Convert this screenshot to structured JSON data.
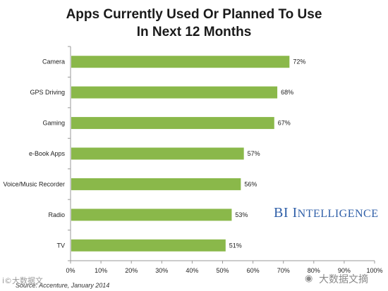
{
  "chart_data": {
    "type": "bar",
    "orientation": "horizontal",
    "title": "Apps Currently Used Or Planned To Use",
    "subtitle": "In Next 12 Months",
    "categories": [
      "Camera",
      "GPS Driving",
      "Gaming",
      "e-Book Apps",
      "Voice/Music Recorder",
      "Radio",
      "TV"
    ],
    "values": [
      72,
      68,
      67,
      57,
      56,
      53,
      51
    ],
    "data_labels": [
      "72%",
      "68%",
      "67%",
      "57%",
      "56%",
      "53%",
      "51%"
    ],
    "xlim": [
      0,
      100
    ],
    "x_ticks": [
      "0%",
      "10%",
      "20%",
      "30%",
      "40%",
      "50%",
      "60%",
      "70%",
      "80%",
      "90%",
      "100%"
    ],
    "grid": false,
    "legend": "none",
    "bar_color": "#8ab84a"
  },
  "branding": {
    "first": "BI",
    "second": "I",
    "rest": "NTELLIGENCE"
  },
  "source": "Source: Accenture, January 2014",
  "watermark_left": "i©大数据文",
  "watermark_right": "大数据文摘",
  "wechat_icon": "wechat-icon",
  "colors": {
    "bar": "#8ab84a",
    "axis": "#9a9a9a",
    "brand": "#2f5fa8"
  }
}
